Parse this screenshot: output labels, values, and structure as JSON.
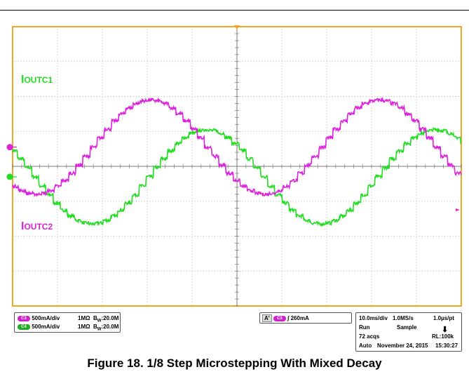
{
  "chart_data": {
    "type": "line",
    "title": "",
    "xlabel": "",
    "ylabel": "",
    "grid": true,
    "x_divisions": 10,
    "y_divisions": 8,
    "series": [
      {
        "name": "IOUTC1",
        "label_main": "I",
        "label_sub": "OUTC1",
        "color": "#22dd22",
        "channel": "C4",
        "baseline_div": -0.3,
        "amplitude_div": 1.35,
        "period_div": 5.1,
        "phase_div": 0.85,
        "steps_per_cycle": 32
      },
      {
        "name": "IOUTC2",
        "label_main": "I",
        "label_sub": "OUTC2",
        "color": "#dd22dd",
        "channel": "C3",
        "baseline_div": 0.55,
        "amplitude_div": 1.35,
        "period_div": 5.1,
        "phase_div": 2.1,
        "steps_per_cycle": 32
      }
    ]
  },
  "channels": {
    "c3": {
      "badge": "C3",
      "scale": "500mA/div",
      "impedance": "1MΩ",
      "bw_prefix": "B",
      "bw_sub": "W",
      "bw_value": ":20.0M"
    },
    "c4": {
      "badge": "C4",
      "scale": "500mA/div",
      "impedance": "1MΩ",
      "bw_prefix": "B",
      "bw_sub": "W",
      "bw_value": ":20.0M"
    }
  },
  "trigger": {
    "marker": "A'",
    "badge": "C3",
    "edge": "∫",
    "level": "260mA"
  },
  "acquisition": {
    "timebase": "10.0ms/div",
    "sample_rate": "1.0MS/s",
    "resolution": "1.0µs/pt",
    "state": "Run",
    "mode": "Sample",
    "acqs": "72 acqs",
    "record_length": "RL:100k",
    "trigger_mode": "Auto",
    "date": "November 24, 2015",
    "time": "15:30:27"
  },
  "caption": "Figure 18. 1/8 Step Microstepping With Mixed Decay",
  "colors": {
    "frame": "#f5a623",
    "grid": "#a0a0a0",
    "trigger_marker": "#f5a623"
  }
}
